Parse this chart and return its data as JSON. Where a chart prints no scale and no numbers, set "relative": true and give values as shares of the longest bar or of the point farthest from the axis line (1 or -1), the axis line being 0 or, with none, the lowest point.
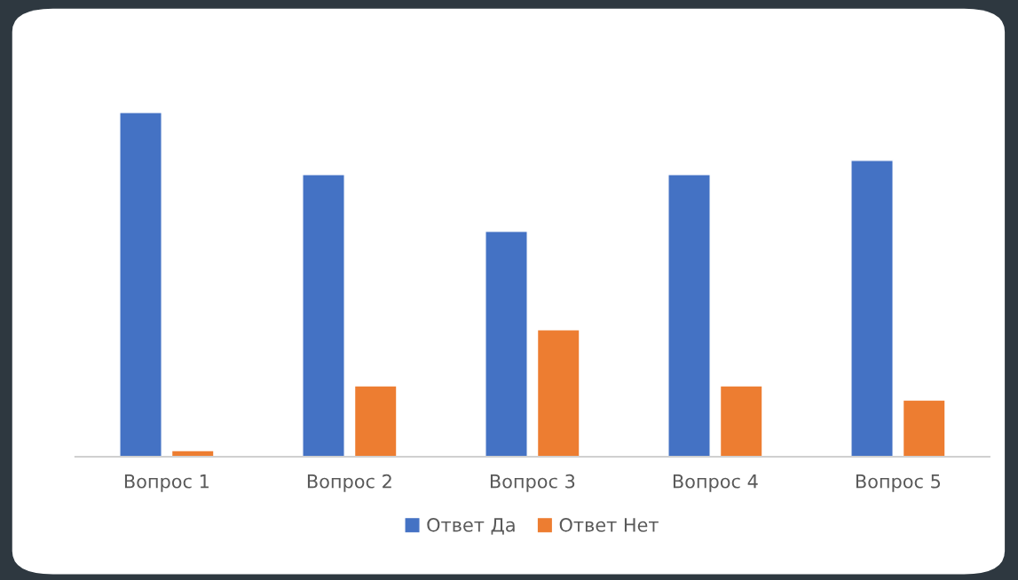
{
  "chart_data": {
    "type": "bar",
    "relative": true,
    "categories": [
      "Вопрос 1",
      "Вопрос 2",
      "Вопрос 3",
      "Вопрос 4",
      "Вопрос 5"
    ],
    "series": [
      {
        "name": "Ответ Да",
        "color": "#4472c4",
        "values": [
          1,
          0.82,
          0.655,
          0.82,
          0.861
        ]
      },
      {
        "name": "Ответ Нет",
        "color": "#ed7d31",
        "values": [
          0.018,
          0.206,
          0.369,
          0.206,
          0.165
        ]
      }
    ],
    "legend": "bottom",
    "grid": false
  }
}
